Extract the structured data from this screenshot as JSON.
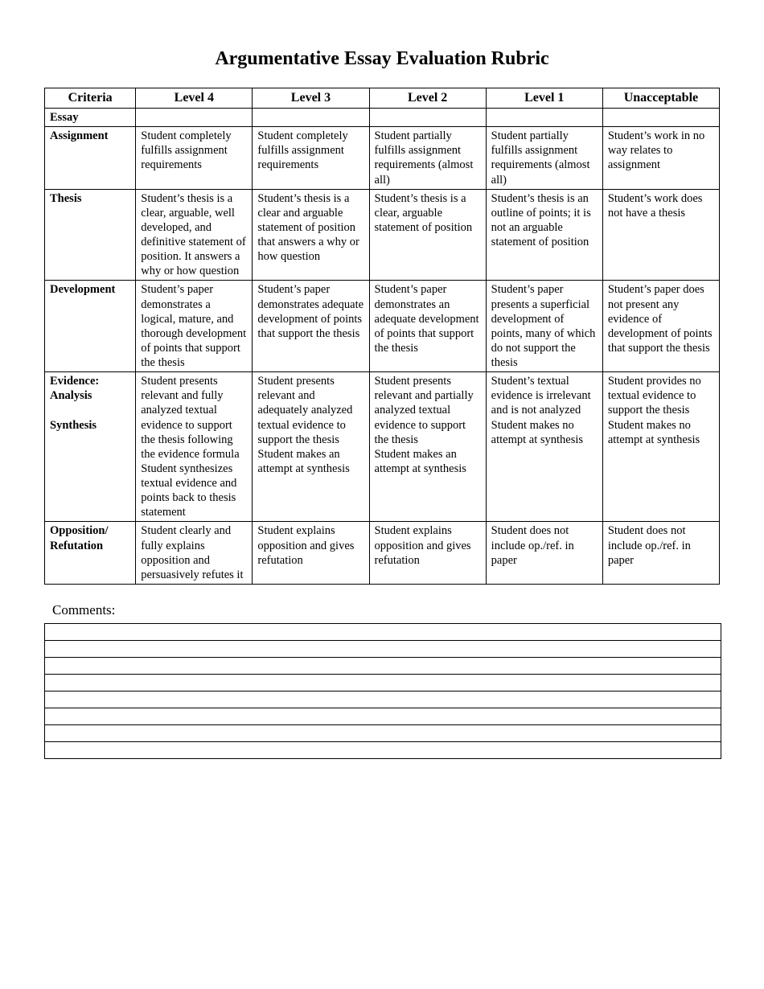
{
  "title": "Argumentative Essay Evaluation Rubric",
  "columns": [
    "Criteria",
    "Level 4",
    "Level 3",
    "Level 2",
    "Level 1",
    "Unacceptable"
  ],
  "rows": [
    {
      "criteria": "Essay",
      "cells": [
        "",
        "",
        "",
        "",
        ""
      ]
    },
    {
      "criteria": "Assignment",
      "cells": [
        "Student completely fulfills assignment requirements",
        "Student completely fulfills assignment requirements",
        "Student partially fulfills assignment requirements (almost all)",
        "Student partially fulfills assignment requirements (almost all)",
        "Student’s work in no way relates to assignment"
      ]
    },
    {
      "criteria": "Thesis",
      "cells": [
        "Student’s thesis is a clear, arguable, well developed, and definitive statement of position.  It answers a why or how question",
        "Student’s thesis is a clear and arguable statement of position that answers a why or how question",
        "Student’s thesis is a clear, arguable statement of position",
        "Student’s thesis is an outline of points; it is not an arguable statement of position",
        "Student’s work does not have a thesis"
      ]
    },
    {
      "criteria": "Development",
      "cells": [
        "Student’s paper demonstrates a logical, mature, and thorough development of points that support the thesis",
        "Student’s paper demonstrates adequate development of points that support the thesis",
        "Student’s paper demonstrates an adequate development of points that support the thesis",
        "Student’s paper presents a superficial development of points, many of which do not support the thesis",
        "Student’s paper does not present any evidence of development of points that support the thesis"
      ]
    },
    {
      "criteria": "Evidence:\nAnalysis\n\nSynthesis",
      "cells": [
        "Student presents relevant and fully analyzed textual evidence to support the thesis following the evidence formula\nStudent synthesizes textual evidence and points back to thesis statement",
        "Student presents relevant and adequately analyzed textual evidence to support the thesis\nStudent makes an attempt at synthesis",
        "Student presents relevant and partially analyzed textual evidence to support the thesis\nStudent makes an attempt at synthesis",
        "Student’s textual evidence is irrelevant and is not analyzed\nStudent makes no attempt at synthesis",
        "Student provides no textual evidence to support the thesis\nStudent makes no attempt at synthesis"
      ]
    },
    {
      "criteria": "Opposition/\nRefutation",
      "cells": [
        "Student clearly and fully explains opposition and persuasively refutes it",
        "Student  explains opposition and gives refutation",
        "Student explains opposition and gives refutation",
        "Student does not include op./ref. in paper",
        "Student does not include op./ref. in paper"
      ]
    }
  ],
  "comments_label": "Comments:",
  "comments_line_count": 8,
  "style": {
    "background_color": "#ffffff",
    "text_color": "#000000",
    "border_color": "#000000",
    "title_fontsize": 24,
    "header_fontsize": 16,
    "body_fontsize": 14.5,
    "comments_fontsize": 17,
    "comment_line_height": 20,
    "font_family": "Garamond, Georgia, Times New Roman, serif",
    "column_widths_pct": [
      13.5,
      17.3,
      17.3,
      17.3,
      17.3,
      17.3
    ]
  }
}
